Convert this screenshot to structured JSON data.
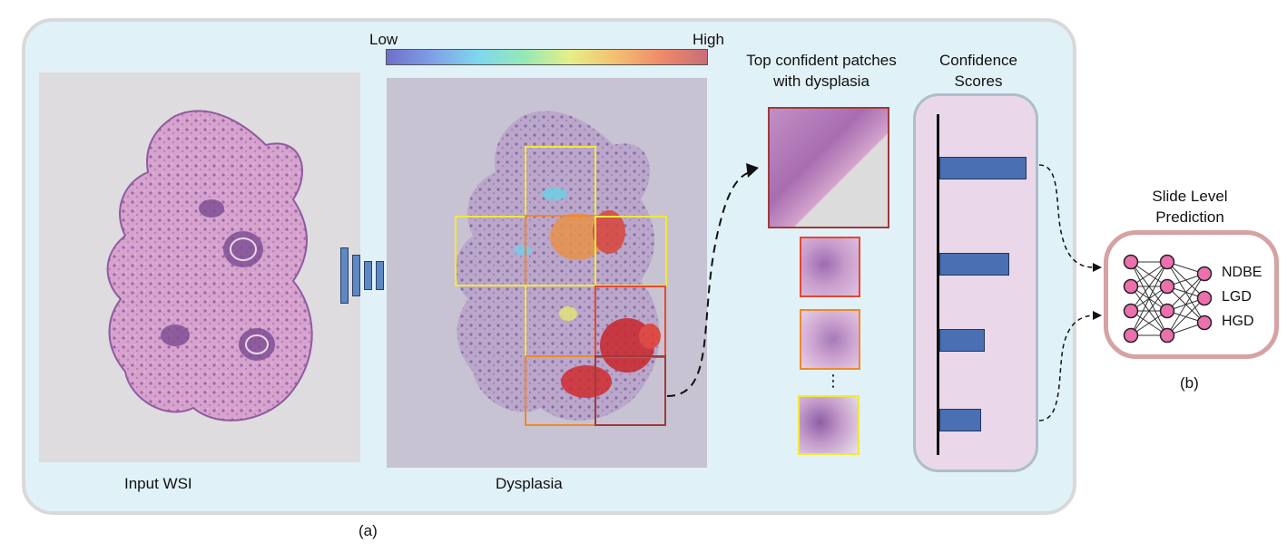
{
  "colorbar": {
    "low_label": "Low",
    "high_label": "High",
    "colors": [
      "#6f6fc9",
      "#7fa0e8",
      "#7fd7ee",
      "#95e8b6",
      "#e6ef86",
      "#f3c071",
      "#ef8a68",
      "#c96d78"
    ]
  },
  "panel_a": {
    "input_label": "Input WSI",
    "heatmap_label": "Dysplasia",
    "patches_title": "Top confident patches with dysplasia",
    "patches_title_line1": "Top confident patches",
    "patches_title_line2": "with dysplasia",
    "ellipsis": "⋮",
    "scores_title_line1": "Confidence",
    "scores_title_line2": "Scores",
    "bar_values": [
      0.96,
      0.77,
      0.5,
      0.46
    ],
    "caption": "(a)"
  },
  "panel_b": {
    "title_line1": "Slide Level",
    "title_line2": "Prediction",
    "classes": [
      "NDBE",
      "LGD",
      "HGD"
    ],
    "caption": "(b)"
  },
  "colors": {
    "panel_bg": "#e1f1f8",
    "panel_border": "#d9d9d9",
    "score_bg": "#ead8ea",
    "bar": "#4a6fb3",
    "node": "#ec6fae",
    "cnn_block": "#5d88c3",
    "patch_borders": [
      "#9e3b3b",
      "#e8462f",
      "#f0882c",
      "#f2e83a"
    ]
  }
}
